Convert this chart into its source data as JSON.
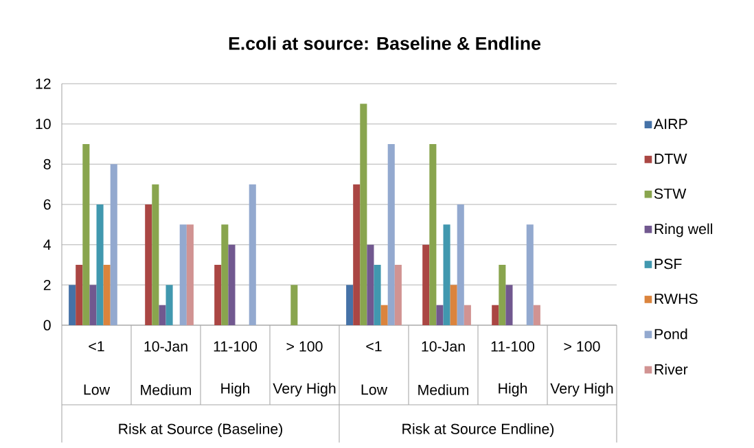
{
  "chart_data": {
    "type": "bar",
    "title": "E.coli at source: Baseline & Endline",
    "categories": [
      "<1",
      "10-Jan",
      "11-100",
      "> 100",
      "<1",
      "10-Jan",
      "11-100",
      "> 100"
    ],
    "series": [
      {
        "name": "AIRP",
        "color": "#4572a7",
        "values": [
          2,
          null,
          null,
          null,
          2,
          null,
          null,
          null
        ]
      },
      {
        "name": "DTW",
        "color": "#aa4643",
        "values": [
          3,
          6,
          3,
          null,
          7,
          4,
          1,
          null
        ]
      },
      {
        "name": "STW",
        "color": "#89a54e",
        "values": [
          9,
          7,
          5,
          2,
          11,
          9,
          3,
          null
        ]
      },
      {
        "name": "Ring well",
        "color": "#71588f",
        "values": [
          2,
          1,
          4,
          null,
          4,
          1,
          2,
          null
        ]
      },
      {
        "name": "PSF",
        "color": "#4198af",
        "values": [
          6,
          2,
          null,
          null,
          3,
          5,
          null,
          null
        ]
      },
      {
        "name": "RWHS",
        "color": "#db843d",
        "values": [
          3,
          null,
          null,
          null,
          1,
          2,
          null,
          null
        ]
      },
      {
        "name": "Pond",
        "color": "#93a9cf",
        "values": [
          8,
          5,
          7,
          null,
          9,
          6,
          5,
          null
        ]
      },
      {
        "name": "River",
        "color": "#d19392",
        "values": [
          null,
          5,
          null,
          null,
          3,
          1,
          1,
          null
        ]
      }
    ],
    "annotations": [
      "Low",
      "Medium",
      "High",
      "Very High",
      "Low",
      "Medium",
      "High",
      "Very High",
      "Risk at Source (Baseline)",
      "Risk at Source Endline)"
    ],
    "ylim": [
      0,
      12
    ],
    "yticks": [
      0,
      2,
      4,
      6,
      8,
      10,
      12
    ],
    "grid": "y",
    "legend": "right"
  }
}
